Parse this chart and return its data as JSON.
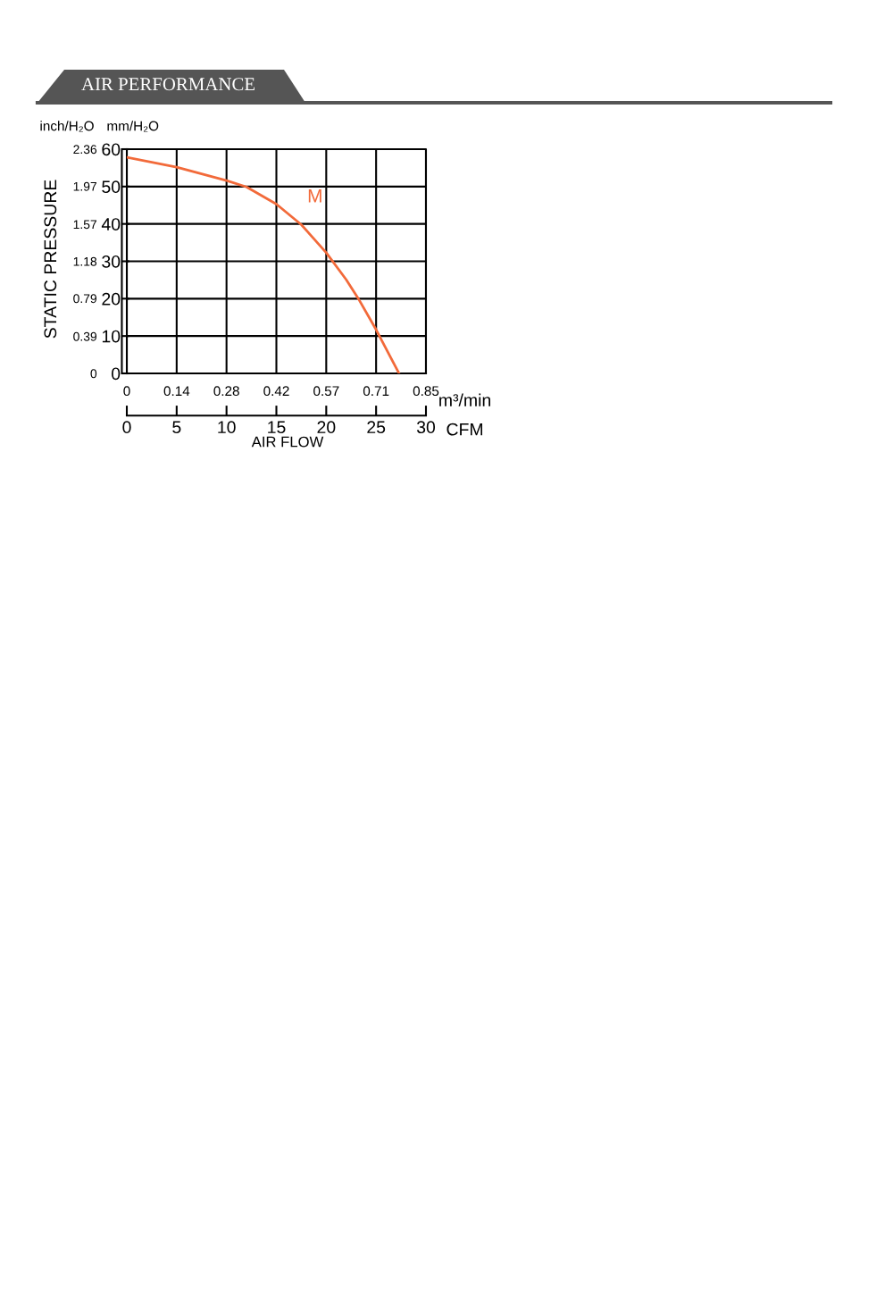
{
  "chart_data": {
    "type": "line",
    "title": "AIR PERFORMANCE",
    "xlabel": "CFM",
    "x2label": "m³/min",
    "ylabel": "mm/H₂O",
    "y2label": "inch/H₂O",
    "annotations": [
      "STATIC PRESSURE",
      "AIR FLOW"
    ],
    "x": [
      0,
      5,
      10,
      12,
      15,
      17.5,
      20,
      22,
      23.2,
      25,
      27.3
    ],
    "series": [
      {
        "name": "M",
        "color": "#f26a3a",
        "values": [
          57.8,
          55.2,
          51.6,
          49.9,
          45.3,
          39.8,
          32.3,
          25.1,
          20.1,
          11.7,
          0
        ]
      }
    ],
    "xlim": [
      0,
      30
    ],
    "xticks": [
      0,
      5,
      10,
      15,
      20,
      25,
      30
    ],
    "x2lim": [
      0,
      0.85
    ],
    "x2ticks": [
      0,
      {
        "value": 0.1417,
        "label": "0.14"
      },
      {
        "value": 0.2833,
        "label": "0.28"
      },
      {
        "value": 0.425,
        "label": "0.42"
      },
      {
        "value": 0.5667,
        "label": "0.57"
      },
      {
        "value": 0.7083,
        "label": "0.71"
      },
      0.85
    ],
    "ylim": [
      0,
      60
    ],
    "yticks": [
      0,
      10,
      20,
      30,
      40,
      50,
      60
    ],
    "y2lim": [
      0,
      2.36
    ],
    "y2ticks": [
      0,
      0.39,
      0.79,
      1.18,
      1.57,
      1.97,
      2.36
    ],
    "grid": true,
    "marker": "none",
    "line_style": "solid"
  }
}
